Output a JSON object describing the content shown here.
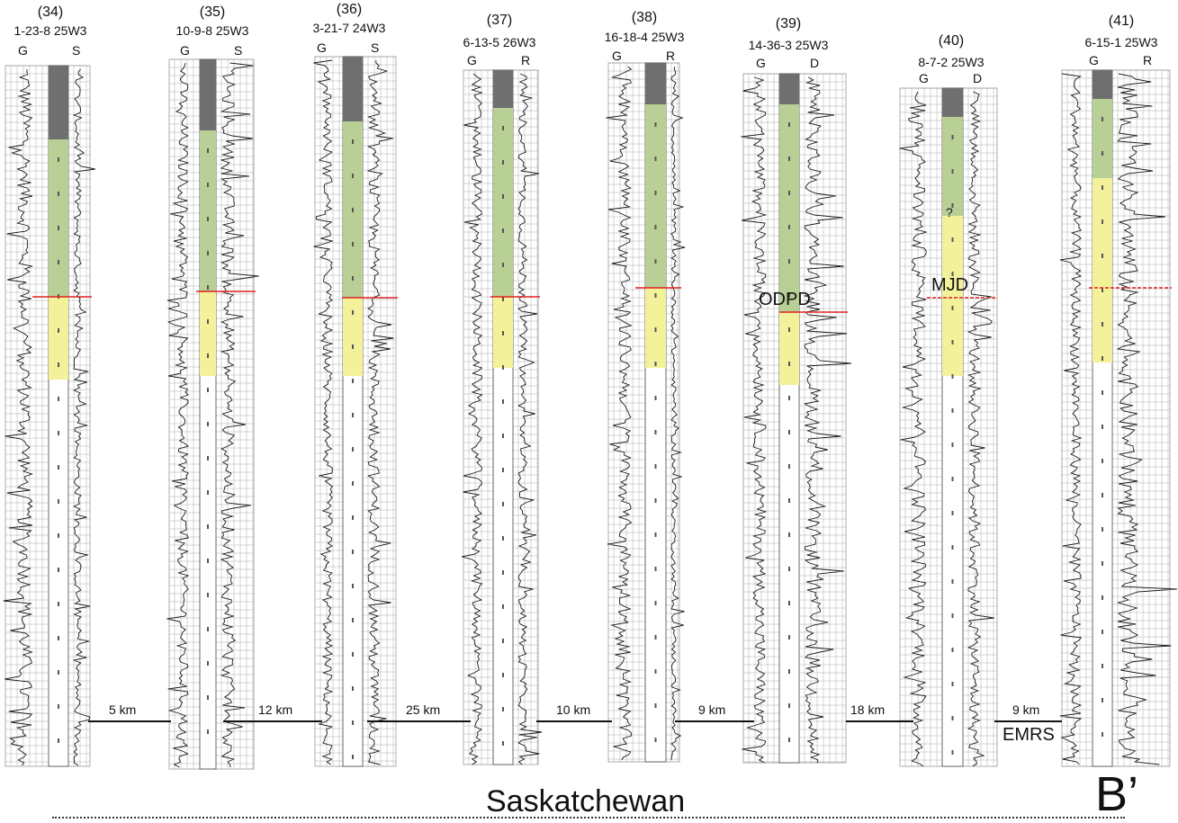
{
  "section_end_label": "B’",
  "region_label": "Saskatchewan",
  "colors": {
    "upper_unit": "#6f6f6f",
    "green_unit": "#b8cf95",
    "yellow_unit": "#f3f29a",
    "horizon_line": "#e02020",
    "grid": "#9a9a9a",
    "trace": "#1a1a1a"
  },
  "wells": [
    {
      "number": "(34)",
      "location": "1-23-8 25W3",
      "log_left": "G",
      "log_right": "S"
    },
    {
      "number": "(35)",
      "location": "10-9-8 25W3",
      "log_left": "G",
      "log_right": "S"
    },
    {
      "number": "(36)",
      "location": "3-21-7 24W3",
      "log_left": "G",
      "log_right": "S"
    },
    {
      "number": "(37)",
      "location": "6-13-5 26W3",
      "log_left": "G",
      "log_right": "R"
    },
    {
      "number": "(38)",
      "location": "16-18-4 25W3",
      "log_left": "G",
      "log_right": "R"
    },
    {
      "number": "(39)",
      "location": "14-36-3 25W3",
      "log_left": "G",
      "log_right": "D"
    },
    {
      "number": "(40)",
      "location": "8-7-2 25W3",
      "log_left": "G",
      "log_right": "D"
    },
    {
      "number": "(41)",
      "location": "6-15-1 25W3",
      "log_left": "G",
      "log_right": "R"
    }
  ],
  "distances": [
    "5 km",
    "12 km",
    "25 km",
    "10 km",
    "9 km",
    "18 km",
    "9 km"
  ],
  "horizon_labels": [
    "ODPD",
    "MJD",
    "EMRS"
  ],
  "uncertain_mark": "?"
}
